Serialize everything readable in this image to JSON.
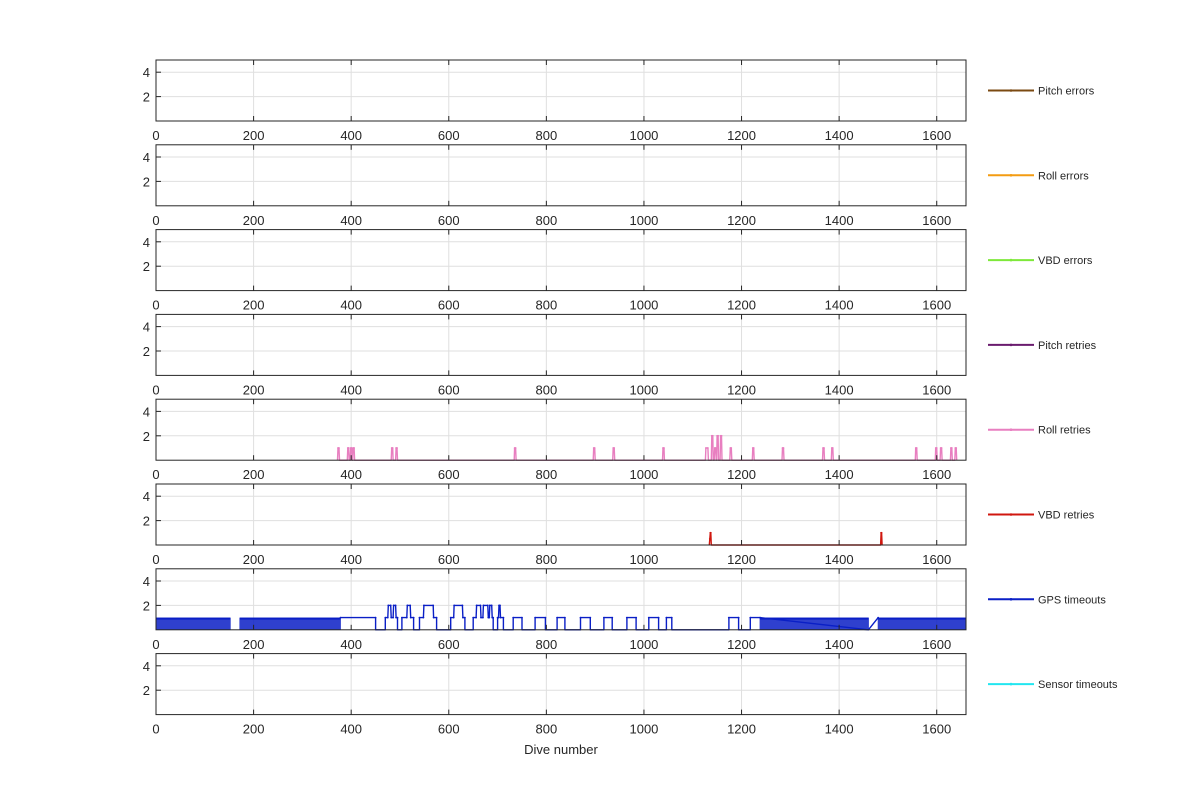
{
  "figure": {
    "xlabel": "Dive number",
    "axis_color": "#262626",
    "grid_color": "#dfdfdf"
  },
  "chart_data": [
    {
      "type": "line",
      "title": "",
      "xlabel": "",
      "ylabel": "",
      "xlim": [
        0,
        1660
      ],
      "ylim": [
        0,
        5
      ],
      "xticks": [
        0,
        200,
        400,
        600,
        800,
        1000,
        1200,
        1400,
        1600
      ],
      "yticks": [
        2,
        4
      ],
      "grid": true,
      "legend_placement": "right",
      "series": [
        {
          "name": "Pitch errors",
          "color": "#7b4a12",
          "points": []
        }
      ]
    },
    {
      "type": "line",
      "title": "",
      "xlabel": "",
      "ylabel": "",
      "xlim": [
        0,
        1660
      ],
      "ylim": [
        0,
        5
      ],
      "xticks": [
        0,
        200,
        400,
        600,
        800,
        1000,
        1200,
        1400,
        1600
      ],
      "yticks": [
        2,
        4
      ],
      "grid": true,
      "legend_placement": "right",
      "series": [
        {
          "name": "Roll errors",
          "color": "#f39c12",
          "points": []
        }
      ]
    },
    {
      "type": "line",
      "title": "",
      "xlabel": "",
      "ylabel": "",
      "xlim": [
        0,
        1660
      ],
      "ylim": [
        0,
        5
      ],
      "xticks": [
        0,
        200,
        400,
        600,
        800,
        1000,
        1200,
        1400,
        1600
      ],
      "yticks": [
        2,
        4
      ],
      "grid": true,
      "legend_placement": "right",
      "series": [
        {
          "name": "VBD errors",
          "color": "#7ee83a",
          "points": []
        }
      ]
    },
    {
      "type": "line",
      "title": "",
      "xlabel": "",
      "ylabel": "",
      "xlim": [
        0,
        1660
      ],
      "ylim": [
        0,
        5
      ],
      "xticks": [
        0,
        200,
        400,
        600,
        800,
        1000,
        1200,
        1400,
        1600
      ],
      "yticks": [
        2,
        4
      ],
      "grid": true,
      "legend_placement": "right",
      "series": [
        {
          "name": "Pitch retries",
          "color": "#6a1b6e",
          "points": []
        }
      ]
    },
    {
      "type": "line",
      "title": "",
      "xlabel": "",
      "ylabel": "",
      "xlim": [
        0,
        1660
      ],
      "ylim": [
        0,
        5
      ],
      "xticks": [
        0,
        200,
        400,
        600,
        800,
        1000,
        1200,
        1400,
        1600
      ],
      "yticks": [
        2,
        4
      ],
      "grid": true,
      "legend_placement": "right",
      "series": [
        {
          "name": "Roll retries",
          "color": "#e87fc0",
          "points": [
            [
              372,
              0
            ],
            [
              373,
              1
            ],
            [
              375,
              1
            ],
            [
              376,
              0
            ],
            [
              392,
              0
            ],
            [
              393,
              1
            ],
            [
              395,
              1
            ],
            [
              396,
              0
            ],
            [
              398,
              0
            ],
            [
              399,
              1
            ],
            [
              401,
              1
            ],
            [
              402,
              0
            ],
            [
              403,
              0
            ],
            [
              404,
              1
            ],
            [
              406,
              1
            ],
            [
              407,
              0
            ],
            [
              482,
              0
            ],
            [
              483,
              1
            ],
            [
              485,
              1
            ],
            [
              486,
              0
            ],
            [
              491,
              0
            ],
            [
              492,
              1
            ],
            [
              494,
              1
            ],
            [
              495,
              0
            ],
            [
              734,
              0
            ],
            [
              735,
              1
            ],
            [
              737,
              1
            ],
            [
              738,
              0
            ],
            [
              896,
              0
            ],
            [
              897,
              1
            ],
            [
              899,
              1
            ],
            [
              900,
              0
            ],
            [
              936,
              0
            ],
            [
              937,
              1
            ],
            [
              939,
              1
            ],
            [
              940,
              0
            ],
            [
              1038,
              0
            ],
            [
              1039,
              1
            ],
            [
              1041,
              1
            ],
            [
              1042,
              0
            ],
            [
              1126,
              0
            ],
            [
              1127,
              1
            ],
            [
              1131,
              1
            ],
            [
              1132,
              0
            ],
            [
              1138,
              0
            ],
            [
              1139,
              2
            ],
            [
              1141,
              2
            ],
            [
              1142,
              0
            ],
            [
              1144,
              0
            ],
            [
              1145,
              1
            ],
            [
              1147,
              1
            ],
            [
              1148,
              0
            ],
            [
              1149,
              0
            ],
            [
              1150,
              2
            ],
            [
              1152,
              2
            ],
            [
              1153,
              0
            ],
            [
              1156,
              0
            ],
            [
              1157,
              2
            ],
            [
              1159,
              2
            ],
            [
              1160,
              0
            ],
            [
              1176,
              0
            ],
            [
              1177,
              1
            ],
            [
              1179,
              1
            ],
            [
              1180,
              0
            ],
            [
              1222,
              0
            ],
            [
              1223,
              1
            ],
            [
              1225,
              1
            ],
            [
              1226,
              0
            ],
            [
              1283,
              0
            ],
            [
              1284,
              1
            ],
            [
              1286,
              1
            ],
            [
              1287,
              0
            ],
            [
              1366,
              0
            ],
            [
              1367,
              1
            ],
            [
              1369,
              1
            ],
            [
              1370,
              0
            ],
            [
              1384,
              0
            ],
            [
              1385,
              1
            ],
            [
              1387,
              1
            ],
            [
              1388,
              0
            ],
            [
              1556,
              0
            ],
            [
              1557,
              1
            ],
            [
              1559,
              1
            ],
            [
              1560,
              0
            ],
            [
              1597,
              0
            ],
            [
              1598,
              1
            ],
            [
              1600,
              1
            ],
            [
              1601,
              0
            ],
            [
              1607,
              0
            ],
            [
              1608,
              1
            ],
            [
              1610,
              1
            ],
            [
              1611,
              0
            ],
            [
              1628,
              0
            ],
            [
              1629,
              1
            ],
            [
              1631,
              1
            ],
            [
              1632,
              0
            ],
            [
              1637,
              0
            ],
            [
              1638,
              1
            ],
            [
              1640,
              1
            ],
            [
              1641,
              0
            ]
          ]
        }
      ]
    },
    {
      "type": "line",
      "title": "",
      "xlabel": "",
      "ylabel": "",
      "xlim": [
        0,
        1660
      ],
      "ylim": [
        0,
        5
      ],
      "xticks": [
        0,
        200,
        400,
        600,
        800,
        1000,
        1200,
        1400,
        1600
      ],
      "yticks": [
        2,
        4
      ],
      "grid": true,
      "legend_placement": "right",
      "series": [
        {
          "name": "VBD retries",
          "color": "#d0170f",
          "points": [
            [
              1134,
              0
            ],
            [
              1135,
              0.5
            ],
            [
              1136,
              1
            ],
            [
              1137,
              1
            ],
            [
              1138,
              0
            ],
            [
              1485,
              0
            ],
            [
              1486,
              1
            ],
            [
              1487,
              1
            ],
            [
              1488,
              0
            ]
          ]
        }
      ]
    },
    {
      "type": "line",
      "title": "",
      "xlabel": "",
      "ylabel": "",
      "xlim": [
        0,
        1660
      ],
      "ylim": [
        0,
        5
      ],
      "xticks": [
        0,
        200,
        400,
        600,
        800,
        1000,
        1200,
        1400,
        1600
      ],
      "yticks": [
        2,
        4
      ],
      "grid": true,
      "legend_placement": "right",
      "series": [
        {
          "name": "GPS timeouts",
          "color": "#0a1fc6",
          "dense_toggle_ranges": [
            [
              0,
              152
            ],
            [
              172,
              378
            ],
            [
              1238,
              1460
            ],
            [
              1480,
              1660
            ]
          ],
          "points": [
            [
              378,
              1
            ],
            [
              450,
              1
            ],
            [
              450,
              0
            ],
            [
              470,
              0
            ],
            [
              470,
              1
            ],
            [
              475,
              1
            ],
            [
              476,
              2
            ],
            [
              481,
              2
            ],
            [
              482,
              1
            ],
            [
              486,
              1
            ],
            [
              487,
              2
            ],
            [
              491,
              2
            ],
            [
              492,
              1
            ],
            [
              495,
              1
            ],
            [
              495,
              0
            ],
            [
              504,
              0
            ],
            [
              504,
              1
            ],
            [
              514,
              1
            ],
            [
              515,
              2
            ],
            [
              521,
              2
            ],
            [
              522,
              1
            ],
            [
              528,
              1
            ],
            [
              528,
              0
            ],
            [
              540,
              0
            ],
            [
              540,
              1
            ],
            [
              548,
              1
            ],
            [
              549,
              2
            ],
            [
              568,
              2
            ],
            [
              569,
              1
            ],
            [
              575,
              1
            ],
            [
              575,
              0
            ],
            [
              604,
              0
            ],
            [
              604,
              1
            ],
            [
              610,
              1
            ],
            [
              611,
              2
            ],
            [
              628,
              2
            ],
            [
              629,
              1
            ],
            [
              633,
              1
            ],
            [
              633,
              0
            ],
            [
              650,
              0
            ],
            [
              650,
              1
            ],
            [
              656,
              1
            ],
            [
              657,
              2
            ],
            [
              665,
              2
            ],
            [
              666,
              1
            ],
            [
              670,
              1
            ],
            [
              671,
              2
            ],
            [
              680,
              2
            ],
            [
              681,
              1
            ],
            [
              683,
              1
            ],
            [
              684,
              2
            ],
            [
              688,
              2
            ],
            [
              689,
              1
            ],
            [
              691,
              1
            ],
            [
              691,
              0
            ],
            [
              700,
              0
            ],
            [
              700,
              1
            ],
            [
              702,
              1
            ],
            [
              703,
              2
            ],
            [
              705,
              2
            ],
            [
              706,
              1
            ],
            [
              712,
              1
            ],
            [
              712,
              0
            ],
            [
              732,
              0
            ],
            [
              732,
              1
            ],
            [
              750,
              1
            ],
            [
              750,
              0
            ],
            [
              777,
              0
            ],
            [
              777,
              1
            ],
            [
              798,
              1
            ],
            [
              798,
              0
            ],
            [
              822,
              0
            ],
            [
              822,
              1
            ],
            [
              838,
              1
            ],
            [
              838,
              0
            ],
            [
              870,
              0
            ],
            [
              870,
              1
            ],
            [
              890,
              1
            ],
            [
              890,
              0
            ],
            [
              918,
              0
            ],
            [
              918,
              1
            ],
            [
              935,
              1
            ],
            [
              935,
              0
            ],
            [
              965,
              0
            ],
            [
              965,
              1
            ],
            [
              984,
              1
            ],
            [
              984,
              0
            ],
            [
              1010,
              0
            ],
            [
              1010,
              1
            ],
            [
              1030,
              1
            ],
            [
              1030,
              0
            ],
            [
              1046,
              0
            ],
            [
              1046,
              1
            ],
            [
              1057,
              1
            ],
            [
              1057,
              0
            ],
            [
              1174,
              0
            ],
            [
              1174,
              1
            ],
            [
              1194,
              1
            ],
            [
              1194,
              0
            ],
            [
              1218,
              0
            ],
            [
              1218,
              1
            ],
            [
              1238,
              1
            ],
            [
              1460,
              0
            ],
            [
              1480,
              1
            ]
          ]
        }
      ]
    },
    {
      "type": "line",
      "title": "",
      "xlabel": "",
      "ylabel": "",
      "xlim": [
        0,
        1660
      ],
      "ylim": [
        0,
        5
      ],
      "xticks": [
        0,
        200,
        400,
        600,
        800,
        1000,
        1200,
        1400,
        1600
      ],
      "yticks": [
        2,
        4
      ],
      "grid": true,
      "legend_placement": "right",
      "series": [
        {
          "name": "Sensor timeouts",
          "color": "#22e6f0",
          "points": []
        }
      ]
    }
  ]
}
